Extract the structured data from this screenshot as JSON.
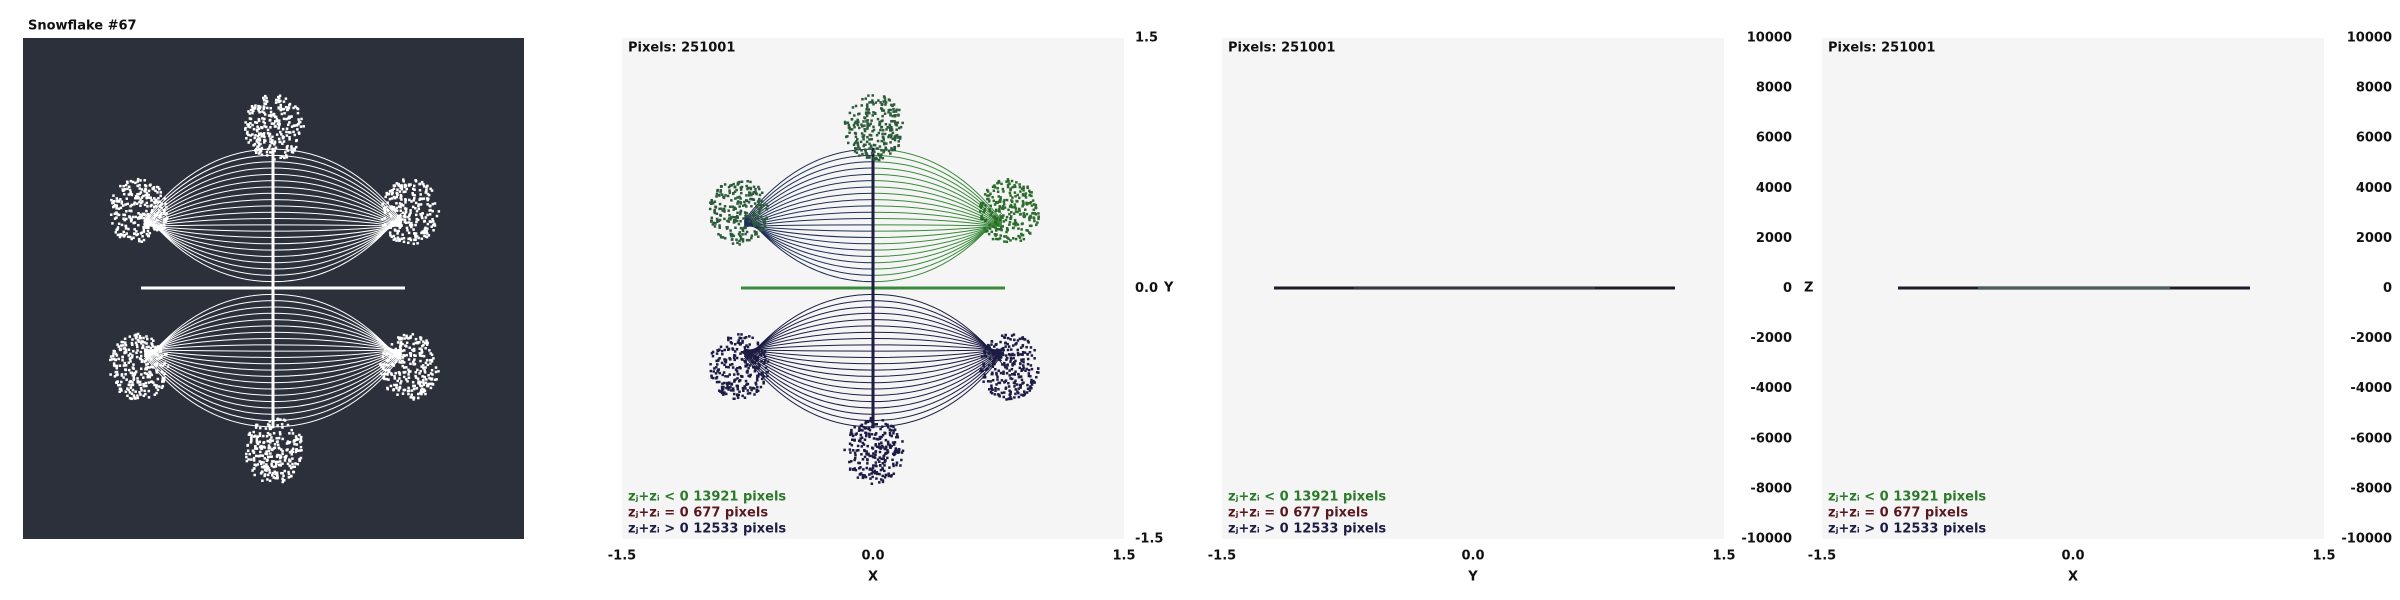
{
  "title": "Snowflake #67",
  "panels": [
    {
      "pixels": "Pixels: 251001",
      "legend": [
        "zⱼ+zᵢ < 0  13921 pixels",
        "zⱼ+zᵢ = 0  677 pixels",
        "zⱼ+zᵢ > 0  12533 pixels"
      ],
      "x_ticks": [
        "-1.5",
        "0.0",
        "1.5"
      ],
      "x_label": "X",
      "right_ticks": [
        "1.5",
        "0.0",
        "-1.5"
      ],
      "right_label": "Y"
    },
    {
      "pixels": "Pixels: 251001",
      "legend": [
        "zⱼ+zᵢ < 0  13921 pixels",
        "zⱼ+zᵢ = 0  677 pixels",
        "zⱼ+zᵢ > 0  12533 pixels"
      ],
      "x_ticks": [
        "-1.5",
        "0.0",
        "1.5"
      ],
      "x_label": "Y",
      "right_ticks": [
        "10000",
        "8000",
        "6000",
        "4000",
        "2000",
        "0",
        "-2000",
        "-4000",
        "-6000",
        "-8000",
        "-10000"
      ],
      "right_label": "Z"
    },
    {
      "pixels": "Pixels: 251001",
      "legend": [
        "zⱼ+zᵢ < 0  13921 pixels",
        "zⱼ+zᵢ = 0  677 pixels",
        "zⱼ+zᵢ > 0  12533 pixels"
      ],
      "x_ticks": [
        "-1.5",
        "0.0",
        "1.5"
      ],
      "x_label": "X",
      "right_ticks": [
        "10000",
        "8000",
        "6000",
        "4000",
        "2000",
        "0",
        "-2000",
        "-4000",
        "-6000",
        "-8000",
        "-10000"
      ],
      "right_label": "Z"
    }
  ]
}
